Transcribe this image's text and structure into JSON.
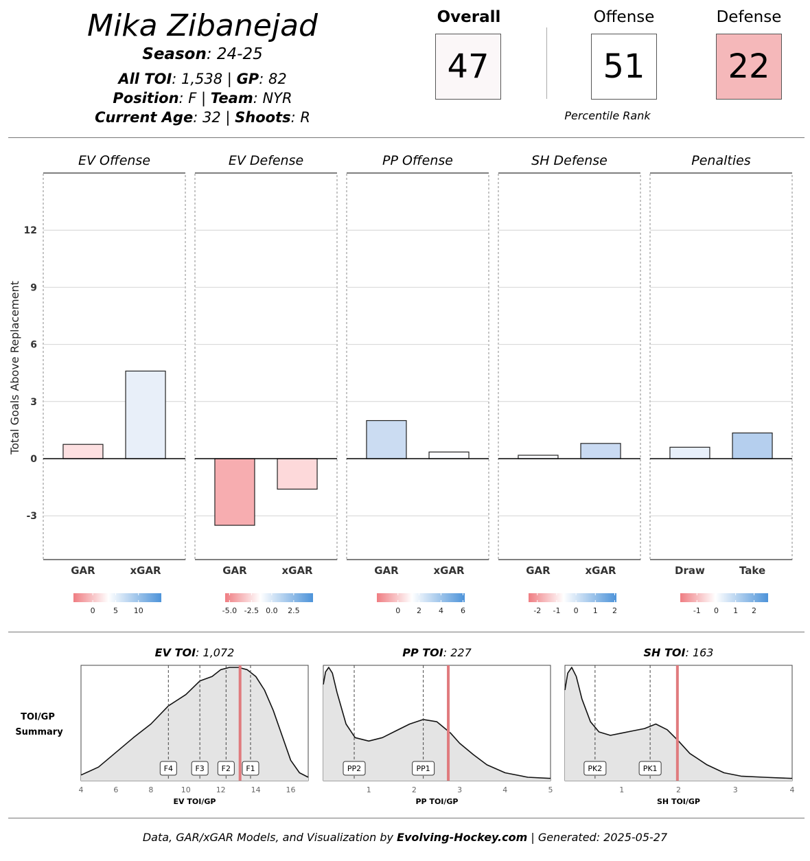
{
  "header": {
    "player_name": "Mika Zibanejad",
    "season_label": "Season",
    "season_value": ": 24-25",
    "toi_label": "All TOI",
    "toi_value": ": 1,538 | ",
    "gp_label": "GP",
    "gp_value": ": 82",
    "position_label": "Position",
    "position_value": ": F | ",
    "team_label": "Team",
    "team_value": ": NYR",
    "age_label": "Current Age",
    "age_value": ": 32 | ",
    "shoots_label": "Shoots",
    "shoots_value": ": R"
  },
  "scores": {
    "overall_label": "Overall",
    "overall_value": "47",
    "overall_color": "#fbf7f8",
    "offense_label": "Offense",
    "offense_value": "51",
    "offense_color": "#ffffff",
    "defense_label": "Defense",
    "defense_value": "22",
    "defense_color": "#f5b8ba",
    "percentile_label": "Percentile Rank"
  },
  "chart_data": [
    {
      "type": "bar",
      "ylabel": "Total Goals Above Replacement",
      "ylim": [
        -5.3,
        15
      ],
      "yticks": [
        -3,
        0,
        3,
        6,
        9,
        12
      ],
      "panels": [
        {
          "title": "EV Offense",
          "categories": [
            "GAR",
            "xGAR"
          ],
          "values": [
            0.75,
            4.6
          ],
          "colors": [
            "#fde0e1",
            "#e8eff9"
          ],
          "legend": {
            "ticks": [
              "0",
              "5",
              "10"
            ],
            "tick_pos": [
              0.22,
              0.48,
              0.74
            ]
          }
        },
        {
          "title": "EV Defense",
          "categories": [
            "GAR",
            "xGAR"
          ],
          "values": [
            -3.5,
            -1.6
          ],
          "colors": [
            "#f7adb0",
            "#fdd9da"
          ],
          "legend": {
            "ticks": [
              "-5.0",
              "-2.5",
              "0.0",
              "2.5"
            ],
            "tick_pos": [
              0.05,
              0.3,
              0.53,
              0.78
            ]
          }
        },
        {
          "title": "PP Offense",
          "categories": [
            "GAR",
            "xGAR"
          ],
          "values": [
            2.0,
            0.35
          ],
          "colors": [
            "#cbdcf2",
            "#fbfcff"
          ],
          "legend": {
            "ticks": [
              "0",
              "2",
              "4",
              "6"
            ],
            "tick_pos": [
              0.24,
              0.48,
              0.73,
              0.98
            ]
          }
        },
        {
          "title": "SH Defense",
          "categories": [
            "GAR",
            "xGAR"
          ],
          "values": [
            0.18,
            0.8
          ],
          "colors": [
            "#fbfcff",
            "#c9daf2"
          ],
          "legend": {
            "ticks": [
              "-2",
              "-1",
              "0",
              "1",
              "2"
            ],
            "tick_pos": [
              0.1,
              0.32,
              0.54,
              0.76,
              0.98
            ]
          }
        },
        {
          "title": "Penalties",
          "categories": [
            "Draw",
            "Take"
          ],
          "values": [
            0.6,
            1.35
          ],
          "colors": [
            "#e8f0fa",
            "#b5cfee"
          ],
          "legend": {
            "ticks": [
              "-1",
              "0",
              "1",
              "2"
            ],
            "tick_pos": [
              0.19,
              0.41,
              0.63,
              0.84
            ]
          }
        }
      ]
    },
    {
      "type": "area",
      "row_label_1": "TOI/GP",
      "row_label_2": "Summary",
      "panels": [
        {
          "title_bold": "EV TOI",
          "title_value": ": 1,072",
          "xlabel": "EV TOI/GP",
          "xlim": [
            4,
            17
          ],
          "xticks": [
            4,
            6,
            8,
            10,
            12,
            14,
            16
          ],
          "x": [
            4,
            5,
            6,
            7,
            8,
            9,
            10,
            10.8,
            11.5,
            12,
            12.5,
            13,
            13.5,
            14,
            14.5,
            15,
            15.5,
            16,
            16.5,
            17
          ],
          "y": [
            0.05,
            0.12,
            0.25,
            0.38,
            0.5,
            0.66,
            0.76,
            0.88,
            0.92,
            0.98,
            1.0,
            1.0,
            0.98,
            0.92,
            0.8,
            0.62,
            0.4,
            0.18,
            0.07,
            0.03
          ],
          "player_value": 13.1,
          "markers": [
            {
              "label": "F4",
              "x": 9.0
            },
            {
              "label": "F3",
              "x": 10.8
            },
            {
              "label": "F2",
              "x": 12.3
            },
            {
              "label": "F1",
              "x": 13.7
            }
          ]
        },
        {
          "title_bold": "PP TOI",
          "title_value": ": 227",
          "xlabel": "PP TOI/GP",
          "xlim": [
            0,
            5
          ],
          "xticks": [
            1,
            2,
            3,
            4,
            5
          ],
          "x": [
            0,
            0.05,
            0.12,
            0.2,
            0.3,
            0.5,
            0.7,
            1.0,
            1.3,
            1.6,
            1.9,
            2.2,
            2.5,
            2.8,
            3.0,
            3.3,
            3.6,
            4.0,
            4.5,
            5.0
          ],
          "y": [
            0.85,
            0.96,
            1.0,
            0.95,
            0.78,
            0.5,
            0.38,
            0.35,
            0.38,
            0.44,
            0.5,
            0.54,
            0.52,
            0.42,
            0.33,
            0.23,
            0.14,
            0.07,
            0.03,
            0.02
          ],
          "player_value": 2.75,
          "markers": [
            {
              "label": "PP2",
              "x": 0.68
            },
            {
              "label": "PP1",
              "x": 2.2
            }
          ]
        },
        {
          "title_bold": "SH TOI",
          "title_value": ": 163",
          "xlabel": "SH TOI/GP",
          "xlim": [
            0,
            4
          ],
          "xticks": [
            1,
            2,
            3,
            4
          ],
          "x": [
            0,
            0.05,
            0.12,
            0.2,
            0.3,
            0.45,
            0.6,
            0.8,
            1.0,
            1.2,
            1.4,
            1.6,
            1.8,
            2.0,
            2.2,
            2.5,
            2.8,
            3.1,
            3.5,
            4.0
          ],
          "y": [
            0.8,
            0.95,
            1.0,
            0.92,
            0.72,
            0.52,
            0.43,
            0.4,
            0.42,
            0.44,
            0.46,
            0.5,
            0.45,
            0.35,
            0.24,
            0.14,
            0.07,
            0.04,
            0.03,
            0.02
          ],
          "player_value": 1.98,
          "markers": [
            {
              "label": "PK2",
              "x": 0.53
            },
            {
              "label": "PK1",
              "x": 1.5
            }
          ]
        }
      ]
    }
  ],
  "footer": {
    "prefix": "Data, GAR/xGAR Models, and Visualization by ",
    "brand": "Evolving-Hockey.com",
    "suffix": " | Generated: 2025-05-27"
  }
}
